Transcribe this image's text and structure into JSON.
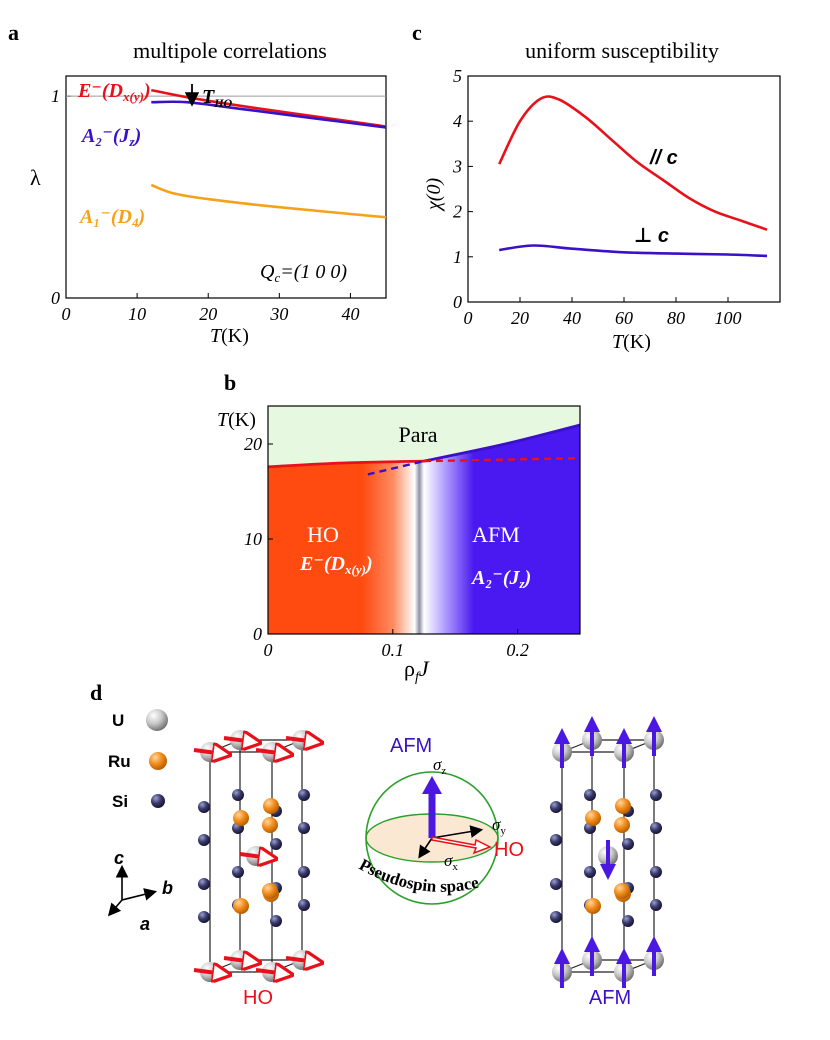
{
  "panels": {
    "a": {
      "letter": "a",
      "title": "multipole correlations",
      "ylabel": "λ",
      "xlabel_T": "T",
      "xlabel_unit": "(K)",
      "annotation_T": "T",
      "annotation_sub": "HO",
      "q_label_main": "Q",
      "q_label_sub": "c",
      "q_label_rest": "=(1 0 0)",
      "series_labels": [
        {
          "main": "E⁻(D",
          "sub": "x(y)",
          "end": ")",
          "color": "#e8101a"
        },
        {
          "main": "A₂⁻(J",
          "sub": "z",
          "end": ")",
          "color": "#3a10c8"
        },
        {
          "main": "A₁⁻(D",
          "sub": "4",
          "end": ")",
          "color": "#f5a21a"
        }
      ]
    },
    "c": {
      "letter": "c",
      "title": "uniform susceptibility",
      "ylabel": "χ(0)",
      "xlabel_T": "T",
      "xlabel_unit": "(K)",
      "label_par": "// c",
      "label_perp": "⊥ c"
    },
    "b": {
      "letter": "b",
      "ylabel_T": "T",
      "ylabel_unit": "(K)",
      "xlabel": "ρ",
      "xlabel_sub": "f",
      "xlabel_end": "J",
      "region_para": "Para",
      "region_ho": "HO",
      "region_ho_sym": "E⁻(D",
      "region_ho_sub": "x(y)",
      "region_afm": "AFM",
      "region_afm_sym": "A₂⁻(J",
      "region_afm_sub": "z"
    },
    "d": {
      "letter": "d",
      "legend": [
        {
          "label": "U",
          "color": "#b8b8b8"
        },
        {
          "label": "Ru",
          "color": "#f28c1a"
        },
        {
          "label": "Si",
          "color": "#3a3a6a"
        }
      ],
      "axis_c": "c",
      "axis_b": "b",
      "axis_a": "a",
      "caption_ho": "HO",
      "caption_afm": "AFM",
      "sphere_afm": "AFM",
      "sphere_ho": "HO",
      "sigma_z": "σ",
      "sigma_z_sub": "z",
      "sigma_y": "σ",
      "sigma_y_sub": "y",
      "sigma_x": "σ",
      "sigma_x_sub": "x",
      "pseudospin": "Pseudospin space"
    }
  },
  "chart_data": [
    {
      "type": "line",
      "panel": "a",
      "title": "multipole correlations",
      "xlabel": "T(K)",
      "ylabel": "λ",
      "xlim": [
        0,
        45
      ],
      "ylim": [
        0,
        1.1
      ],
      "xticks": [
        0,
        10,
        20,
        30,
        40
      ],
      "yticks": [
        0,
        1
      ],
      "reference_line": 1,
      "series": [
        {
          "name": "E⁻(Dx(y))",
          "color": "#e8101a",
          "x": [
            12,
            17,
            25,
            35,
            45
          ],
          "y": [
            1.03,
            0.995,
            0.95,
            0.9,
            0.85
          ]
        },
        {
          "name": "A₂⁻(Jz)",
          "color": "#3a10c8",
          "x": [
            12,
            17,
            25,
            35,
            45
          ],
          "y": [
            0.97,
            0.97,
            0.935,
            0.89,
            0.845
          ]
        },
        {
          "name": "A₁⁻(D4)",
          "color": "#f5a21a",
          "x": [
            12,
            15,
            20,
            30,
            45
          ],
          "y": [
            0.56,
            0.52,
            0.49,
            0.45,
            0.4
          ]
        }
      ]
    },
    {
      "type": "line",
      "panel": "c",
      "title": "uniform susceptibility",
      "xlabel": "T(K)",
      "ylabel": "χ(0)",
      "xlim": [
        0,
        120
      ],
      "ylim": [
        0,
        5
      ],
      "xticks": [
        0,
        20,
        40,
        60,
        80,
        100
      ],
      "yticks": [
        0,
        1,
        2,
        3,
        4,
        5
      ],
      "series": [
        {
          "name": "// c",
          "color": "#e8101a",
          "x": [
            12,
            20,
            28,
            35,
            45,
            55,
            65,
            75,
            85,
            95,
            105,
            115
          ],
          "y": [
            3.05,
            4.0,
            4.5,
            4.48,
            4.1,
            3.6,
            3.1,
            2.7,
            2.3,
            2.0,
            1.8,
            1.6
          ]
        },
        {
          "name": "⊥ c",
          "color": "#3a10c8",
          "x": [
            12,
            25,
            40,
            60,
            80,
            100,
            115
          ],
          "y": [
            1.15,
            1.25,
            1.18,
            1.1,
            1.07,
            1.05,
            1.02
          ]
        }
      ]
    },
    {
      "type": "area",
      "panel": "b",
      "xlabel": "ρf J",
      "ylabel": "T(K)",
      "xlim": [
        0,
        0.25
      ],
      "ylim": [
        0,
        24
      ],
      "xticks": [
        0,
        0.1,
        0.2
      ],
      "yticks": [
        0,
        10,
        20
      ],
      "boundaries": [
        {
          "name": "HO transition",
          "color": "#e8101a",
          "x": [
            0,
            0.06,
            0.125
          ],
          "y": [
            17.6,
            18.0,
            18.2
          ]
        },
        {
          "name": "AFM transition",
          "color": "#3a10c8",
          "x": [
            0.125,
            0.19,
            0.25
          ],
          "y": [
            18.2,
            20.0,
            22.0
          ]
        },
        {
          "name": "HO extrapolated",
          "color": "#e8101a",
          "style": "dashed",
          "x": [
            0.125,
            0.25
          ],
          "y": [
            18.2,
            18.5
          ]
        },
        {
          "name": "AFM extrapolated",
          "color": "#3a10c8",
          "style": "dashed",
          "x": [
            0.08,
            0.125
          ],
          "y": [
            16.8,
            18.2
          ]
        }
      ],
      "regions": [
        "Para",
        "HO",
        "AFM"
      ],
      "critical_x": 0.125
    }
  ]
}
